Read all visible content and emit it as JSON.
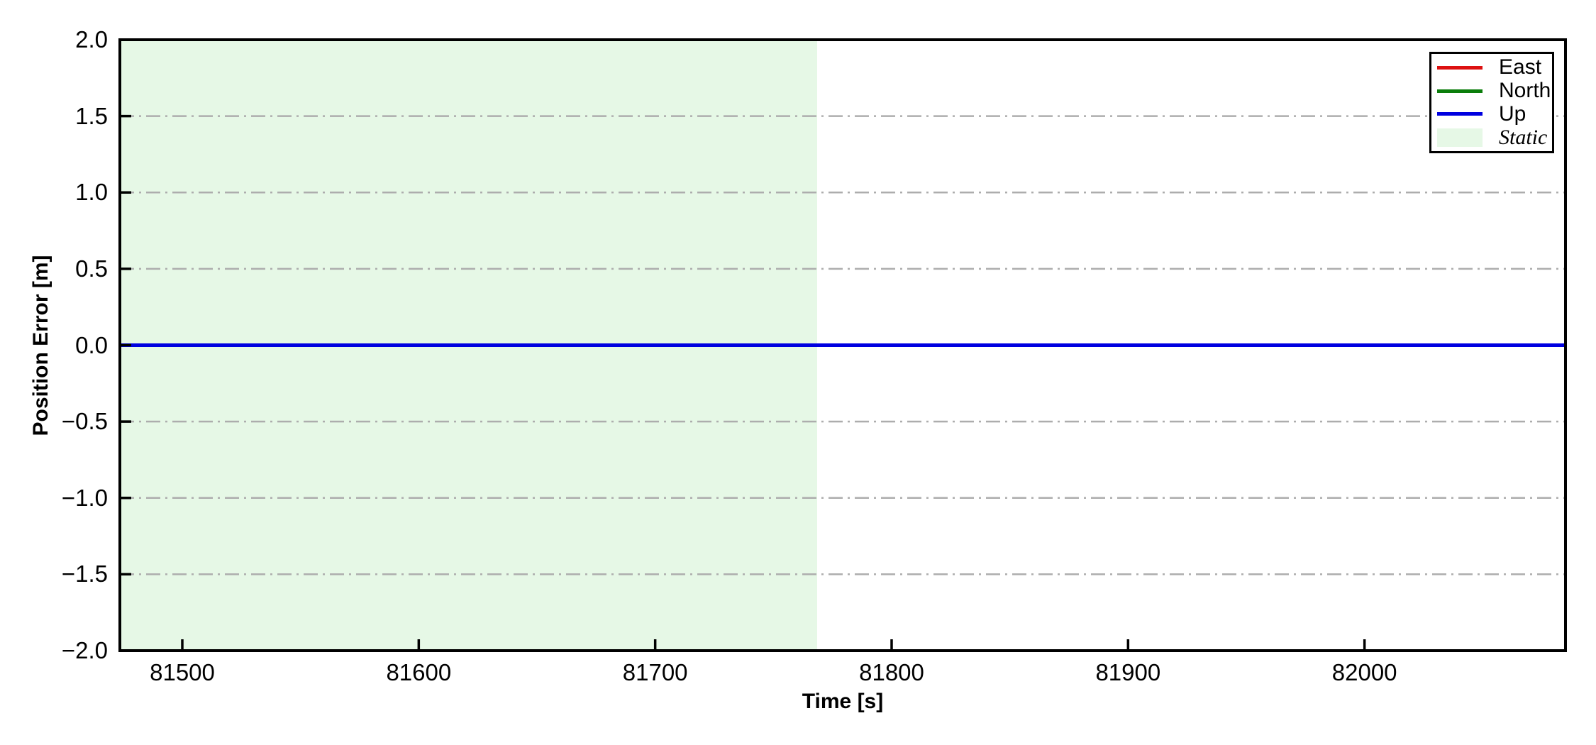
{
  "chart_data": {
    "type": "line",
    "xlabel": "Time [s]",
    "ylabel": "Position Error [m]",
    "xlim": [
      81473.6,
      82085.0
    ],
    "ylim": [
      -2.0,
      2.0
    ],
    "x_ticks": [
      81500,
      81600,
      81700,
      81800,
      81900,
      82000
    ],
    "x_tick_labels": [
      "81500",
      "81600",
      "81700",
      "81800",
      "81900",
      "82000"
    ],
    "y_ticks": [
      2.0,
      1.5,
      1.0,
      0.5,
      0.0,
      -0.5,
      -1.0,
      -1.5,
      -2.0
    ],
    "y_tick_labels": [
      "2.0",
      "1.5",
      "1.0",
      "0.5",
      "0.0",
      "−0.5",
      "−1.0",
      "−1.5",
      "−2.0"
    ],
    "grid": {
      "show": true,
      "axis": "y",
      "style": "dash-dot",
      "color": "#adadad"
    },
    "axis_color": "#000000",
    "series": [
      {
        "name": "East",
        "color": "#dd1111",
        "x": [
          81473.6,
          82085.0
        ],
        "y": [
          0.0,
          0.0
        ]
      },
      {
        "name": "North",
        "color": "#0b7d0b",
        "x": [
          81473.6,
          82085.0
        ],
        "y": [
          0.0,
          0.0
        ]
      },
      {
        "name": "Up",
        "color": "#0000e0",
        "x": [
          81473.6,
          82085.0
        ],
        "y": [
          0.0,
          0.0
        ]
      }
    ],
    "regions": [
      {
        "name": "Static",
        "x_start": 81473.6,
        "x_end": 81768.5,
        "color": "#e6f8e6"
      }
    ],
    "legend": {
      "position": "upper-right",
      "entries": [
        {
          "label": "East",
          "color": "#dd1111",
          "type": "line",
          "italic": false
        },
        {
          "label": "North",
          "color": "#0b7d0b",
          "type": "line",
          "italic": false
        },
        {
          "label": "Up",
          "color": "#0000e0",
          "type": "line",
          "italic": false
        },
        {
          "label": "Static",
          "color": "#e6f8e6",
          "type": "patch",
          "italic": true
        }
      ]
    }
  }
}
